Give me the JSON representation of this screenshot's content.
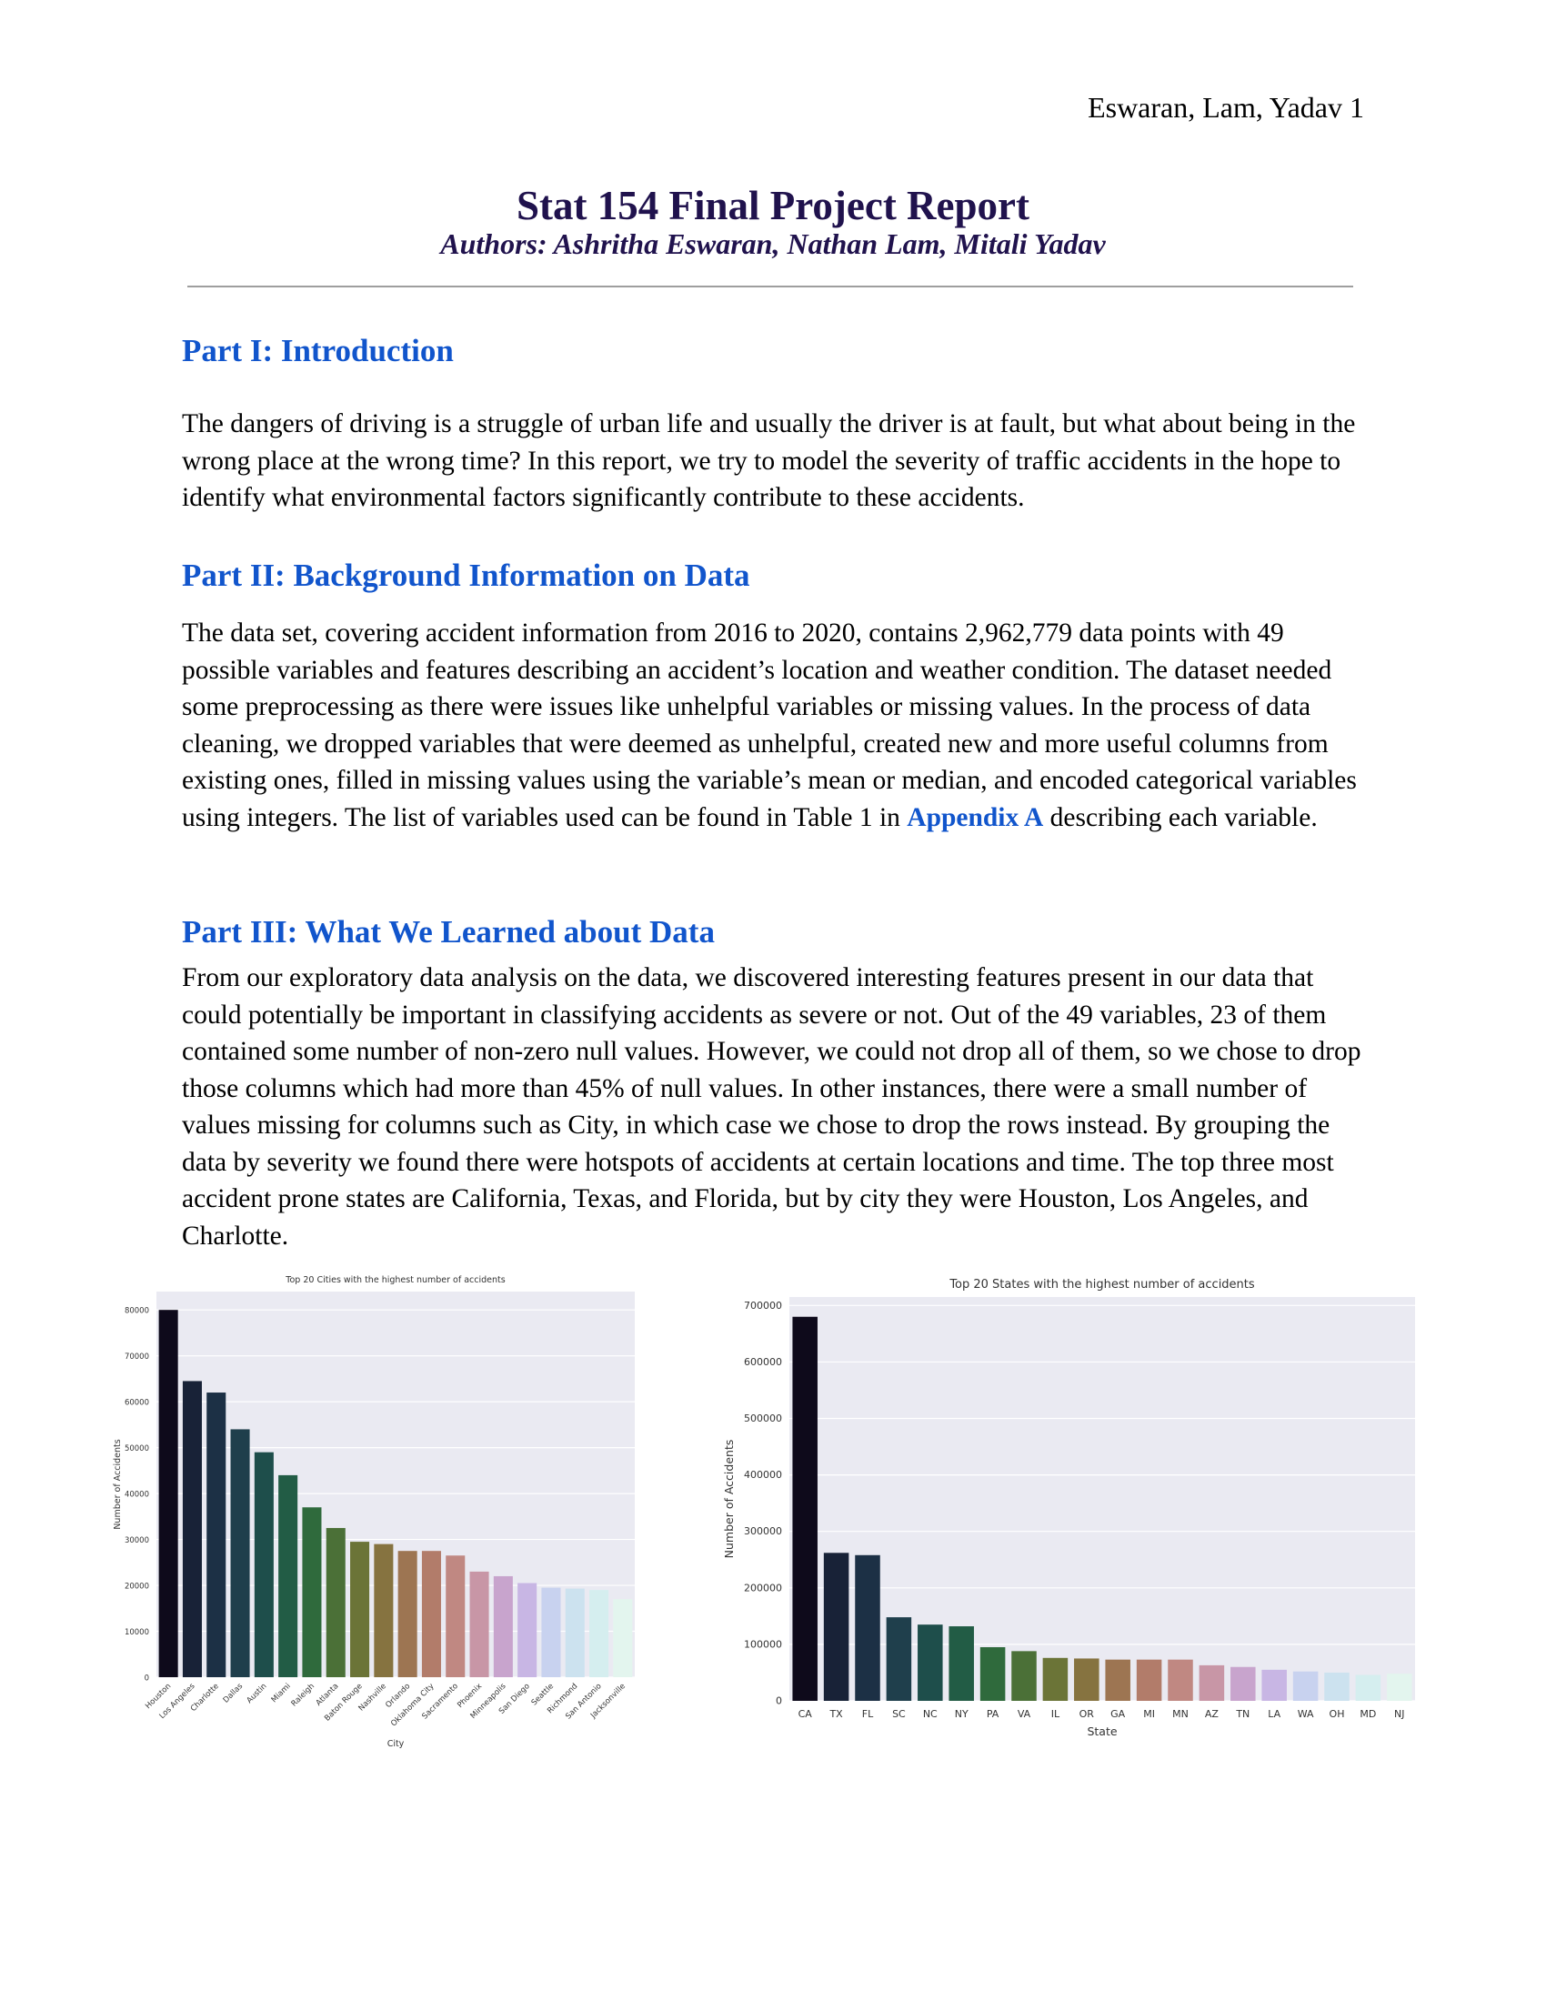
{
  "header": {
    "running_head": "Eswaran, Lam, Yadav 1"
  },
  "title": "Stat 154 Final Project Report",
  "authors": "Authors: Ashritha Eswaran, Nathan Lam, Mitali Yadav",
  "sections": [
    {
      "heading": "Part I: Introduction",
      "body": "The dangers of driving is a struggle of urban life and usually the driver is at fault, but what about being in the wrong place at the wrong time? In this report, we try to model the severity of traffic accidents in the hope to identify what environmental factors significantly contribute to these accidents."
    },
    {
      "heading": "Part II: Background Information on Data",
      "body_before_link": "The data set, covering accident information from 2016 to 2020, contains 2,962,779 data points with 49 possible variables and features describing an accident’s location and weather condition. The dataset needed some preprocessing as there were issues like unhelpful variables or missing values. In the process of data cleaning, we dropped variables that were deemed as unhelpful, created new and more useful columns from existing ones, filled in missing values using the variable’s mean or median, and encoded categorical variables using integers. The list of variables used can be found in Table 1 in",
      "link": "Appendix A",
      "body_after_link": "describing each variable."
    },
    {
      "heading": "Part III: What We Learned about Data",
      "body": "From our exploratory data analysis on the data, we discovered interesting features present in our data that could potentially be important in classifying accidents as severe or not. Out of the 49 variables, 23 of them contained some number of non-zero null values. However, we could not drop all of them, so we chose to drop those columns which had more than 45% of null values. In other instances, there were a small number of values missing for columns such as City, in which case we chose to drop the rows instead. By grouping the data by severity we found there were hotspots of accidents at certain locations and time. The top three most accident prone states are California, Texas, and Florida, but by city they were Houston, Los Angeles, and Charlotte."
    }
  ],
  "chart_data": [
    {
      "type": "bar",
      "title": "Top 20 Cities with the highest number of accidents",
      "xlabel": "City",
      "ylabel": "Number of Accidents",
      "ylim": [
        0,
        84000
      ],
      "yticks": [
        0,
        10000,
        20000,
        30000,
        40000,
        50000,
        60000,
        70000,
        80000
      ],
      "grid": true,
      "categories": [
        "Houston",
        "Los Angeles",
        "Charlotte",
        "Dallas",
        "Austin",
        "Miami",
        "Raleigh",
        "Atlanta",
        "Baton Rouge",
        "Nashville",
        "Orlando",
        "Oklahoma City",
        "Sacramento",
        "Phoenix",
        "Minneapolis",
        "San Diego",
        "Seattle",
        "Richmond",
        "San Antonio",
        "Jacksonville"
      ],
      "values": [
        80000,
        64500,
        62000,
        54000,
        49000,
        44000,
        37000,
        32500,
        29500,
        29000,
        27500,
        27500,
        26500,
        23000,
        22000,
        20500,
        19500,
        19300,
        19000,
        17000
      ],
      "colors": [
        "#0e0a1b",
        "#182237",
        "#1c3045",
        "#1f3f4c",
        "#1e4e4b",
        "#225c45",
        "#2f6a3c",
        "#4b7037",
        "#6b7437",
        "#867340",
        "#9d7552",
        "#b27c6a",
        "#c08882",
        "#c896a6",
        "#c8a4cd",
        "#c8b6e4",
        "#c8d2ef",
        "#cce2ef",
        "#d5eeef",
        "#e3f5ee"
      ]
    },
    {
      "type": "bar",
      "title": "Top 20 States with the highest number of accidents",
      "xlabel": "State",
      "ylabel": "Number of Accidents",
      "ylim": [
        0,
        715000
      ],
      "yticks": [
        0,
        100000,
        200000,
        300000,
        400000,
        500000,
        600000,
        700000
      ],
      "grid": true,
      "categories": [
        "CA",
        "TX",
        "FL",
        "SC",
        "NC",
        "NY",
        "PA",
        "VA",
        "IL",
        "OR",
        "GA",
        "MI",
        "MN",
        "AZ",
        "TN",
        "LA",
        "WA",
        "OH",
        "MD",
        "NJ"
      ],
      "values": [
        680000,
        262000,
        258000,
        148000,
        135000,
        132000,
        95000,
        88000,
        76000,
        75000,
        73000,
        73000,
        73000,
        63000,
        60000,
        55000,
        52000,
        50000,
        46000,
        48000
      ],
      "colors": [
        "#0e0a1b",
        "#182237",
        "#1c3045",
        "#1f3f4c",
        "#1e4e4b",
        "#225c45",
        "#2f6a3c",
        "#4b7037",
        "#6b7437",
        "#867340",
        "#9d7552",
        "#b27c6a",
        "#c08882",
        "#c896a6",
        "#c8a4cd",
        "#c8b6e4",
        "#c8d2ef",
        "#cce2ef",
        "#d5eeef",
        "#e3f5ee"
      ]
    }
  ]
}
